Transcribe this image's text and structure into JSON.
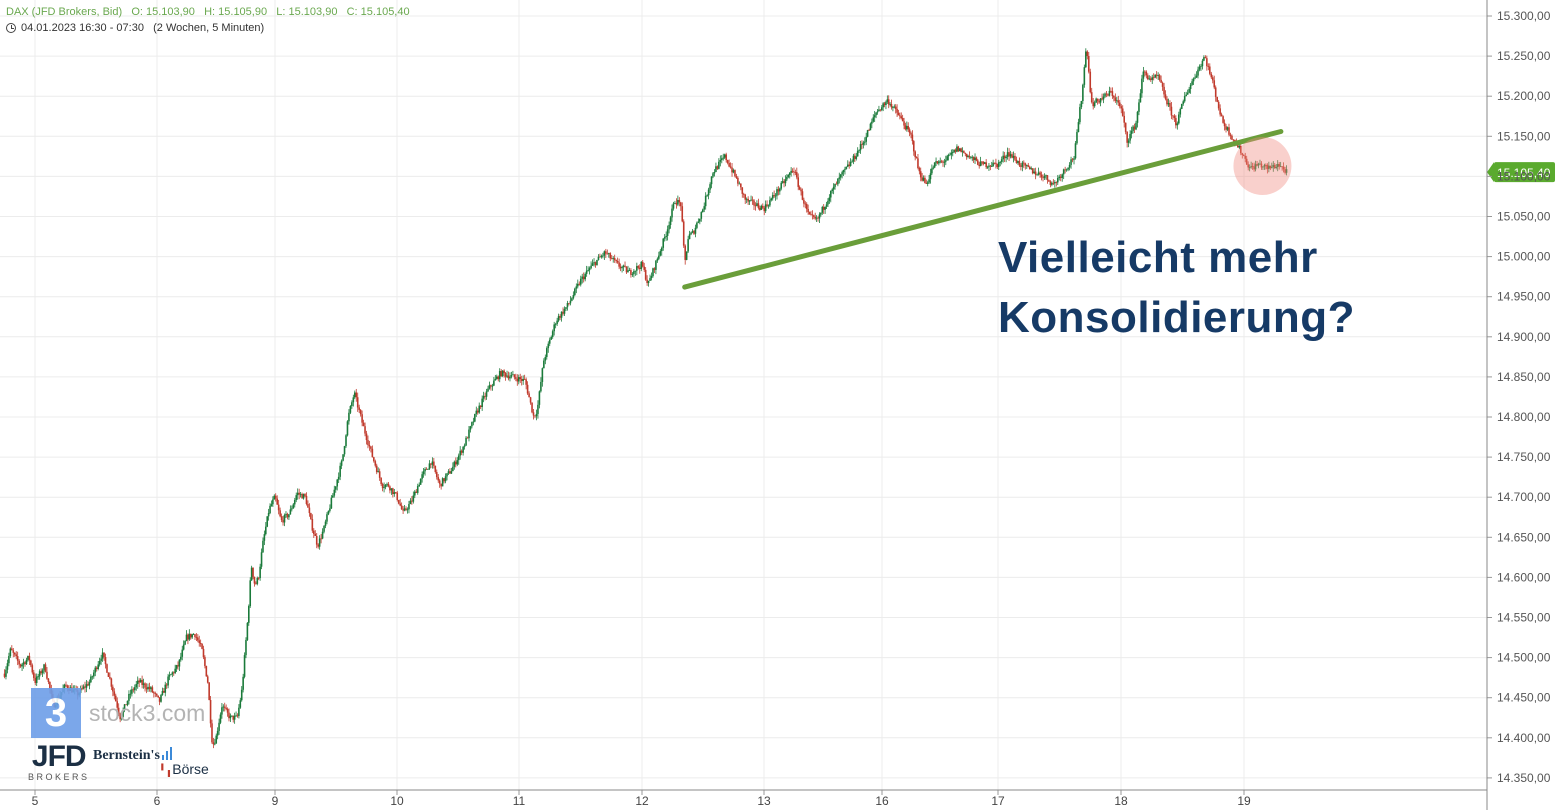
{
  "header": {
    "instrument": "DAX (JFD Brokers, Bid)",
    "open": "O: 15.103,90",
    "high": "H: 15.105,90",
    "low": "L: 15.103,90",
    "close": "C: 15.105,40",
    "period": "04.01.2023 16:30 - 07:30",
    "interval": "(2 Wochen, 5 Minuten)"
  },
  "annotation": {
    "line1": "Vielleicht mehr",
    "line2": "Konsolidierung?"
  },
  "watermark": {
    "logo_digit": "3",
    "site": "stock3.com"
  },
  "logos": {
    "jfd": "JFD",
    "jfd_sub": "BROKERS",
    "bernstein": "Bernstein's",
    "boerse": "Börse"
  },
  "colors": {
    "up": "#1a7a3a",
    "down": "#c0392b",
    "trendline": "#6a9e3a",
    "price_badge": "#5aaa2e",
    "annotation": "#163a66",
    "highlight": "#f08a80"
  },
  "chart_data": {
    "type": "candlestick",
    "instrument": "DAX (JFD Brokers, Bid)",
    "ylim": [
      14330,
      15310
    ],
    "y_ticks": [
      "15.300,00",
      "15.250,00",
      "15.200,00",
      "15.150,00",
      "15.100,00",
      "15.050,00",
      "15.000,00",
      "14.950,00",
      "14.900,00",
      "14.850,00",
      "14.800,00",
      "14.750,00",
      "14.700,00",
      "14.650,00",
      "14.600,00",
      "14.550,00",
      "14.500,00",
      "14.450,00",
      "14.400,00",
      "14.350,00"
    ],
    "y_tick_values": [
      15300,
      15250,
      15200,
      15150,
      15100,
      15050,
      15000,
      14950,
      14900,
      14850,
      14800,
      14750,
      14700,
      14650,
      14600,
      14550,
      14500,
      14450,
      14400,
      14350
    ],
    "x_ticks": [
      "5",
      "6",
      "9",
      "10",
      "11",
      "12",
      "13",
      "16",
      "17",
      "18",
      "19"
    ],
    "x_tick_positions": [
      0.0,
      1.0,
      2.0,
      3.0,
      4.0,
      5.0,
      6.0,
      7.0,
      8.0,
      9.0,
      10.0
    ],
    "current_price": "15.105,40",
    "current_price_value": 15105.4,
    "price_path": [
      [
        -0.25,
        14480
      ],
      [
        -0.2,
        14510
      ],
      [
        -0.12,
        14490
      ],
      [
        -0.05,
        14500
      ],
      [
        0.0,
        14470
      ],
      [
        0.08,
        14490
      ],
      [
        0.15,
        14440
      ],
      [
        0.25,
        14465
      ],
      [
        0.35,
        14455
      ],
      [
        0.45,
        14470
      ],
      [
        0.55,
        14505
      ],
      [
        0.62,
        14470
      ],
      [
        0.7,
        14425
      ],
      [
        0.78,
        14455
      ],
      [
        0.85,
        14470
      ],
      [
        0.95,
        14460
      ],
      [
        1.02,
        14445
      ],
      [
        1.1,
        14475
      ],
      [
        1.18,
        14490
      ],
      [
        1.25,
        14525
      ],
      [
        1.32,
        14530
      ],
      [
        1.38,
        14510
      ],
      [
        1.43,
        14470
      ],
      [
        1.47,
        14390
      ],
      [
        1.5,
        14400
      ],
      [
        1.55,
        14440
      ],
      [
        1.62,
        14425
      ],
      [
        1.68,
        14425
      ],
      [
        1.72,
        14460
      ],
      [
        1.77,
        14550
      ],
      [
        1.8,
        14615
      ],
      [
        1.83,
        14590
      ],
      [
        1.86,
        14600
      ],
      [
        1.9,
        14645
      ],
      [
        1.95,
        14685
      ],
      [
        2.0,
        14700
      ],
      [
        2.05,
        14670
      ],
      [
        2.12,
        14680
      ],
      [
        2.18,
        14705
      ],
      [
        2.25,
        14700
      ],
      [
        2.3,
        14665
      ],
      [
        2.35,
        14640
      ],
      [
        2.4,
        14660
      ],
      [
        2.47,
        14700
      ],
      [
        2.55,
        14745
      ],
      [
        2.6,
        14800
      ],
      [
        2.65,
        14830
      ],
      [
        2.72,
        14790
      ],
      [
        2.8,
        14750
      ],
      [
        2.88,
        14715
      ],
      [
        2.93,
        14715
      ],
      [
        3.0,
        14700
      ],
      [
        3.05,
        14680
      ],
      [
        3.12,
        14695
      ],
      [
        3.2,
        14725
      ],
      [
        3.28,
        14745
      ],
      [
        3.35,
        14715
      ],
      [
        3.45,
        14735
      ],
      [
        3.55,
        14765
      ],
      [
        3.65,
        14805
      ],
      [
        3.75,
        14835
      ],
      [
        3.85,
        14855
      ],
      [
        3.95,
        14850
      ],
      [
        4.05,
        14845
      ],
      [
        4.12,
        14800
      ],
      [
        4.15,
        14810
      ],
      [
        4.2,
        14870
      ],
      [
        4.3,
        14920
      ],
      [
        4.4,
        14940
      ],
      [
        4.5,
        14970
      ],
      [
        4.6,
        14990
      ],
      [
        4.7,
        15005
      ],
      [
        4.8,
        14990
      ],
      [
        4.9,
        14980
      ],
      [
        5.0,
        14990
      ],
      [
        5.05,
        14965
      ],
      [
        5.12,
        14995
      ],
      [
        5.2,
        15030
      ],
      [
        5.27,
        15070
      ],
      [
        5.32,
        15065
      ],
      [
        5.35,
        14990
      ],
      [
        5.38,
        15025
      ],
      [
        5.42,
        15030
      ],
      [
        5.5,
        15060
      ],
      [
        5.58,
        15105
      ],
      [
        5.68,
        15125
      ],
      [
        5.78,
        15095
      ],
      [
        5.85,
        15070
      ],
      [
        6.0,
        15060
      ],
      [
        6.08,
        15075
      ],
      [
        6.18,
        15095
      ],
      [
        6.25,
        15110
      ],
      [
        6.3,
        15085
      ],
      [
        6.38,
        15050
      ],
      [
        6.45,
        15045
      ],
      [
        6.55,
        15075
      ],
      [
        6.65,
        15100
      ],
      [
        6.75,
        15120
      ],
      [
        6.85,
        15145
      ],
      [
        6.95,
        15180
      ],
      [
        7.05,
        15195
      ],
      [
        7.15,
        15175
      ],
      [
        7.25,
        15150
      ],
      [
        7.32,
        15105
      ],
      [
        7.38,
        15090
      ],
      [
        7.45,
        15115
      ],
      [
        7.55,
        15120
      ],
      [
        7.65,
        15135
      ],
      [
        7.75,
        15125
      ],
      [
        7.85,
        15115
      ],
      [
        8.0,
        15115
      ],
      [
        8.08,
        15130
      ],
      [
        8.18,
        15115
      ],
      [
        8.3,
        15105
      ],
      [
        8.38,
        15100
      ],
      [
        8.45,
        15090
      ],
      [
        8.55,
        15110
      ],
      [
        8.62,
        15125
      ],
      [
        8.68,
        15200
      ],
      [
        8.72,
        15265
      ],
      [
        8.76,
        15190
      ],
      [
        8.82,
        15195
      ],
      [
        8.92,
        15205
      ],
      [
        9.0,
        15185
      ],
      [
        9.05,
        15145
      ],
      [
        9.12,
        15165
      ],
      [
        9.18,
        15230
      ],
      [
        9.25,
        15220
      ],
      [
        9.3,
        15225
      ],
      [
        9.38,
        15190
      ],
      [
        9.45,
        15165
      ],
      [
        9.52,
        15200
      ],
      [
        9.6,
        15225
      ],
      [
        9.68,
        15250
      ],
      [
        9.75,
        15215
      ],
      [
        9.82,
        15170
      ],
      [
        9.9,
        15150
      ],
      [
        9.98,
        15130
      ],
      [
        10.05,
        15110
      ],
      [
        10.12,
        15115
      ],
      [
        10.2,
        15110
      ],
      [
        10.28,
        15115
      ],
      [
        10.35,
        15105
      ]
    ],
    "trendline": {
      "from": [
        5.35,
        14962
      ],
      "to": [
        10.3,
        15156
      ]
    },
    "annotation": "Vielleicht mehr Konsolidierung?",
    "highlight": {
      "x": 10.15,
      "y": 15113
    },
    "grid": true,
    "candle_interval": "5 Minuten"
  }
}
